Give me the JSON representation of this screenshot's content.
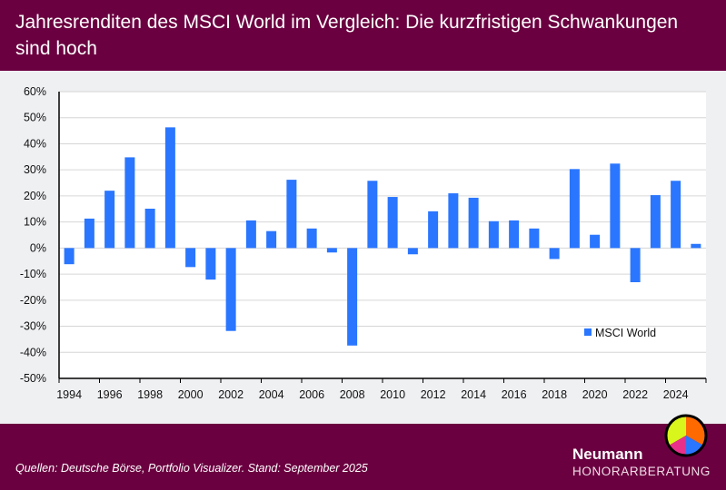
{
  "header": {
    "title": "Jahresrenditen des MSCI World im Vergleich: Die kurzfristigen Schwankungen sind hoch"
  },
  "footer": {
    "source": "Quellen: Deutsche Börse, Portfolio Visualizer. Stand: September 2025",
    "brand_name": "Neumann",
    "brand_sub": "HONORARBERATUNG"
  },
  "colors": {
    "bar": "#2a76ff",
    "header": "#6b0040",
    "logo": [
      "#d8f51c",
      "#ff6a00",
      "#2a76ff",
      "#e8308a"
    ]
  },
  "chart_data": {
    "type": "bar",
    "categories": [
      "1994",
      "1995",
      "1996",
      "1997",
      "1998",
      "1999",
      "2000",
      "2001",
      "2002",
      "2003",
      "2004",
      "2005",
      "2006",
      "2007",
      "2008",
      "2009",
      "2010",
      "2011",
      "2012",
      "2013",
      "2014",
      "2015",
      "2016",
      "2017",
      "2018",
      "2019",
      "2020",
      "2021",
      "2022",
      "2023",
      "2024",
      "2025"
    ],
    "series": [
      {
        "name": "MSCI World",
        "values": [
          -6.2,
          11.3,
          22.0,
          34.8,
          15.1,
          46.3,
          -7.3,
          -12.1,
          -31.8,
          10.6,
          6.5,
          26.2,
          7.5,
          -1.7,
          -37.4,
          25.8,
          19.6,
          -2.4,
          14.1,
          21.0,
          19.3,
          10.3,
          10.6,
          7.5,
          -4.2,
          30.3,
          5.1,
          32.4,
          -13.1,
          20.3,
          25.8,
          1.6
        ]
      }
    ],
    "x_tick_labels": [
      "1994",
      "1996",
      "1998",
      "2000",
      "2002",
      "2004",
      "2006",
      "2008",
      "2010",
      "2012",
      "2014",
      "2016",
      "2018",
      "2020",
      "2022",
      "2024"
    ],
    "y_tick_labels": [
      "60%",
      "50%",
      "40%",
      "30%",
      "20%",
      "10%",
      "0%",
      "-10%",
      "-20%",
      "-30%",
      "-40%",
      "-50%"
    ],
    "ylim": [
      -50,
      60
    ],
    "grid": true,
    "legend": "bottom-right",
    "xlabel": "",
    "ylabel": ""
  }
}
